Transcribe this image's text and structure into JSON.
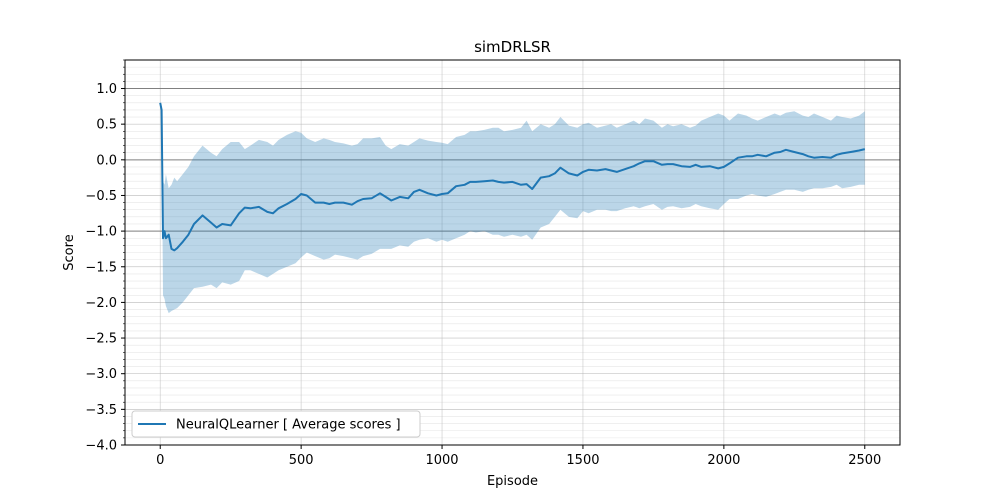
{
  "chart_data": {
    "type": "line",
    "title": "simDRLSR",
    "xlabel": "Episode",
    "ylabel": "Score",
    "xlim": [
      -125,
      2625
    ],
    "ylim": [
      -4.0,
      1.4
    ],
    "xticks": [
      0,
      500,
      1000,
      1500,
      2000,
      2500
    ],
    "xtick_labels": [
      "0",
      "500",
      "1000",
      "1500",
      "2000",
      "2500"
    ],
    "yticks": [
      -4.0,
      -3.5,
      -3.0,
      -2.5,
      -2.0,
      -1.5,
      -1.0,
      -0.5,
      0.0,
      0.5,
      1.0
    ],
    "ytick_labels": [
      "−4.0",
      "−3.5",
      "−3.0",
      "−2.5",
      "−2.0",
      "−1.5",
      "−1.0",
      "−0.5",
      "0.0",
      "0.5",
      "1.0"
    ],
    "reference_lines": [
      1.0,
      0.0,
      -1.0
    ],
    "grid": true,
    "legend_position": "lower-left",
    "colors": {
      "line": "#1f77b4",
      "band": "#1f77b4",
      "grid_major": "#b0b0b0",
      "grid_minor": "#e6e6e6",
      "reference": "#808080"
    },
    "series": [
      {
        "name": "NeuralQLearner [ Average scores ]",
        "x": [
          0,
          5,
          10,
          15,
          20,
          30,
          40,
          50,
          60,
          80,
          100,
          120,
          150,
          180,
          200,
          220,
          250,
          280,
          300,
          320,
          350,
          380,
          400,
          420,
          450,
          480,
          500,
          520,
          550,
          580,
          600,
          620,
          650,
          680,
          700,
          720,
          750,
          780,
          800,
          820,
          850,
          880,
          900,
          920,
          950,
          980,
          1000,
          1020,
          1050,
          1080,
          1100,
          1120,
          1150,
          1180,
          1200,
          1220,
          1250,
          1280,
          1300,
          1320,
          1350,
          1380,
          1400,
          1420,
          1450,
          1480,
          1500,
          1520,
          1550,
          1580,
          1600,
          1620,
          1650,
          1680,
          1700,
          1720,
          1750,
          1780,
          1800,
          1820,
          1850,
          1880,
          1900,
          1920,
          1950,
          1980,
          2000,
          2020,
          2050,
          2080,
          2100,
          2120,
          2150,
          2180,
          2200,
          2220,
          2250,
          2280,
          2300,
          2320,
          2350,
          2380,
          2400,
          2420,
          2450,
          2480,
          2500
        ],
        "mean": [
          0.8,
          0.7,
          -1.1,
          -1.0,
          -1.1,
          -1.05,
          -1.25,
          -1.27,
          -1.24,
          -1.15,
          -1.05,
          -0.9,
          -0.78,
          -0.88,
          -0.95,
          -0.9,
          -0.92,
          -0.75,
          -0.67,
          -0.68,
          -0.66,
          -0.73,
          -0.75,
          -0.68,
          -0.62,
          -0.55,
          -0.48,
          -0.5,
          -0.6,
          -0.6,
          -0.62,
          -0.6,
          -0.6,
          -0.63,
          -0.58,
          -0.55,
          -0.54,
          -0.47,
          -0.52,
          -0.57,
          -0.52,
          -0.54,
          -0.45,
          -0.42,
          -0.47,
          -0.5,
          -0.48,
          -0.47,
          -0.37,
          -0.35,
          -0.31,
          -0.31,
          -0.3,
          -0.29,
          -0.31,
          -0.32,
          -0.31,
          -0.35,
          -0.34,
          -0.41,
          -0.25,
          -0.23,
          -0.19,
          -0.11,
          -0.19,
          -0.22,
          -0.17,
          -0.14,
          -0.15,
          -0.13,
          -0.15,
          -0.17,
          -0.13,
          -0.09,
          -0.05,
          -0.02,
          -0.02,
          -0.07,
          -0.06,
          -0.06,
          -0.09,
          -0.1,
          -0.07,
          -0.1,
          -0.09,
          -0.12,
          -0.1,
          -0.05,
          0.03,
          0.05,
          0.05,
          0.07,
          0.05,
          0.1,
          0.11,
          0.14,
          0.11,
          0.08,
          0.05,
          0.03,
          0.04,
          0.03,
          0.07,
          0.09,
          0.11,
          0.13,
          0.15
        ],
        "upper": [
          0.8,
          0.7,
          -0.3,
          -0.35,
          -0.2,
          -0.4,
          -0.35,
          -0.25,
          -0.3,
          -0.2,
          -0.1,
          0.05,
          0.2,
          0.1,
          0.05,
          0.15,
          0.25,
          0.25,
          0.15,
          0.2,
          0.28,
          0.25,
          0.2,
          0.28,
          0.35,
          0.4,
          0.38,
          0.3,
          0.25,
          0.3,
          0.28,
          0.25,
          0.23,
          0.2,
          0.22,
          0.3,
          0.3,
          0.32,
          0.2,
          0.15,
          0.22,
          0.2,
          0.25,
          0.3,
          0.27,
          0.25,
          0.24,
          0.22,
          0.32,
          0.35,
          0.4,
          0.4,
          0.42,
          0.45,
          0.45,
          0.4,
          0.42,
          0.45,
          0.55,
          0.4,
          0.5,
          0.45,
          0.5,
          0.6,
          0.48,
          0.45,
          0.5,
          0.52,
          0.45,
          0.48,
          0.5,
          0.45,
          0.5,
          0.55,
          0.5,
          0.58,
          0.55,
          0.45,
          0.5,
          0.47,
          0.5,
          0.45,
          0.48,
          0.55,
          0.6,
          0.65,
          0.62,
          0.55,
          0.65,
          0.62,
          0.58,
          0.55,
          0.6,
          0.65,
          0.62,
          0.66,
          0.68,
          0.62,
          0.6,
          0.65,
          0.6,
          0.55,
          0.62,
          0.6,
          0.58,
          0.62,
          0.68
        ],
        "lower": [
          0.8,
          0.7,
          -1.9,
          -1.95,
          -2.05,
          -2.15,
          -2.12,
          -2.1,
          -2.08,
          -2.0,
          -1.9,
          -1.8,
          -1.78,
          -1.75,
          -1.8,
          -1.72,
          -1.75,
          -1.7,
          -1.55,
          -1.55,
          -1.6,
          -1.65,
          -1.6,
          -1.55,
          -1.5,
          -1.45,
          -1.37,
          -1.3,
          -1.35,
          -1.4,
          -1.38,
          -1.33,
          -1.35,
          -1.38,
          -1.4,
          -1.35,
          -1.32,
          -1.25,
          -1.25,
          -1.25,
          -1.2,
          -1.22,
          -1.15,
          -1.12,
          -1.1,
          -1.15,
          -1.12,
          -1.15,
          -1.1,
          -1.05,
          -1.0,
          -1.02,
          -1.0,
          -1.05,
          -1.05,
          -1.08,
          -1.05,
          -1.08,
          -1.05,
          -1.12,
          -0.95,
          -0.9,
          -0.8,
          -0.7,
          -0.8,
          -0.82,
          -0.72,
          -0.75,
          -0.7,
          -0.7,
          -0.72,
          -0.72,
          -0.68,
          -0.65,
          -0.68,
          -0.65,
          -0.62,
          -0.7,
          -0.66,
          -0.65,
          -0.68,
          -0.66,
          -0.62,
          -0.65,
          -0.68,
          -0.7,
          -0.62,
          -0.55,
          -0.55,
          -0.5,
          -0.48,
          -0.5,
          -0.52,
          -0.48,
          -0.45,
          -0.42,
          -0.42,
          -0.45,
          -0.42,
          -0.4,
          -0.4,
          -0.38,
          -0.35,
          -0.4,
          -0.38,
          -0.35,
          -0.35
        ]
      }
    ]
  }
}
